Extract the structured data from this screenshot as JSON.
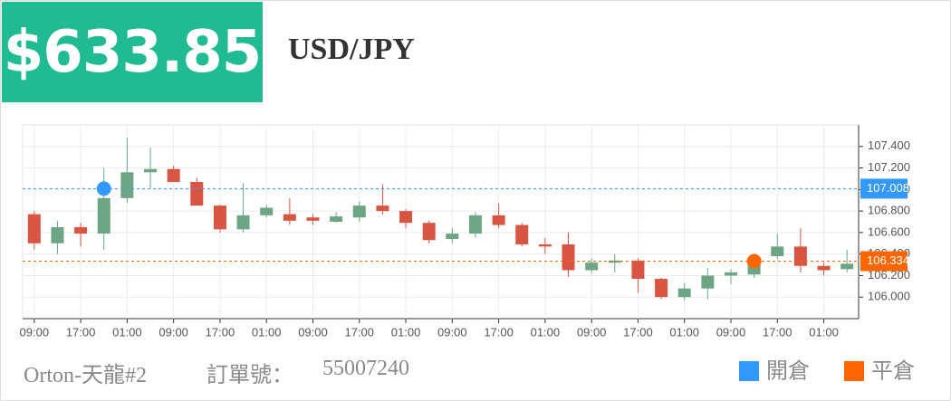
{
  "header": {
    "price": "$633.85",
    "pair": "USD/JPY"
  },
  "chart_data": {
    "type": "candlestick",
    "categories": [
      "09:00",
      null,
      "17:00",
      null,
      "01:00",
      null,
      "09:00",
      null,
      "17:00",
      null,
      "01:00",
      null,
      "09:00",
      null,
      "17:00",
      null,
      "01:00",
      null,
      "09:00",
      null,
      "17:00",
      null,
      "01:00",
      null,
      "09:00",
      null,
      "17:00",
      null,
      "01:00",
      null,
      "09:00",
      null,
      "17:00",
      null,
      "01:00",
      null
    ],
    "open": [
      106.77,
      106.5,
      106.65,
      106.59,
      106.92,
      107.16,
      107.19,
      107.07,
      106.85,
      106.63,
      106.76,
      106.77,
      106.74,
      106.7,
      106.74,
      106.85,
      106.8,
      106.69,
      106.54,
      106.59,
      106.76,
      106.67,
      106.49,
      106.49,
      106.25,
      106.32,
      106.34,
      106.17,
      106.0,
      106.08,
      106.2,
      106.21,
      106.38,
      106.47,
      106.29,
      106.26
    ],
    "high": [
      106.8,
      106.71,
      106.69,
      107.2,
      107.48,
      107.39,
      107.22,
      107.11,
      106.86,
      107.06,
      106.86,
      106.92,
      106.77,
      106.79,
      106.89,
      107.05,
      106.82,
      106.71,
      106.64,
      106.79,
      106.87,
      106.69,
      106.55,
      106.6,
      106.36,
      106.4,
      106.36,
      106.18,
      106.13,
      106.27,
      106.26,
      106.35,
      106.59,
      106.64,
      106.32,
      106.44
    ],
    "low": [
      106.44,
      106.4,
      106.47,
      106.44,
      106.88,
      107.01,
      107.07,
      106.85,
      106.6,
      106.6,
      106.74,
      106.67,
      106.67,
      106.69,
      106.7,
      106.77,
      106.64,
      106.5,
      106.5,
      106.55,
      106.64,
      106.47,
      106.4,
      106.19,
      106.22,
      106.23,
      106.04,
      105.98,
      105.97,
      105.98,
      106.12,
      106.18,
      106.35,
      106.23,
      106.2,
      106.23
    ],
    "close": [
      106.5,
      106.65,
      106.59,
      106.92,
      107.16,
      107.19,
      107.07,
      106.85,
      106.63,
      106.76,
      106.83,
      106.71,
      106.71,
      106.75,
      106.85,
      106.8,
      106.69,
      106.53,
      106.59,
      106.76,
      106.67,
      106.49,
      106.47,
      106.25,
      106.32,
      106.34,
      106.17,
      106.0,
      106.08,
      106.2,
      106.23,
      106.32,
      106.47,
      106.29,
      106.25,
      106.31
    ],
    "up_color": "#6da585",
    "down_color": "#d95543",
    "series": [
      {
        "name": "開倉",
        "color": "#3399ff",
        "values": [
          null,
          null,
          null,
          107.008,
          null,
          null,
          null,
          null,
          null,
          null,
          null,
          null,
          null,
          null,
          null,
          null,
          null,
          null,
          null,
          null,
          null,
          null,
          null,
          null,
          null,
          null,
          null,
          null,
          null,
          null,
          null,
          null,
          null,
          null,
          null,
          null
        ]
      },
      {
        "name": "平倉",
        "color": "#ff6600",
        "values": [
          null,
          null,
          null,
          null,
          null,
          null,
          null,
          null,
          null,
          null,
          null,
          null,
          null,
          null,
          null,
          null,
          null,
          null,
          null,
          null,
          null,
          null,
          null,
          null,
          null,
          null,
          null,
          null,
          null,
          null,
          null,
          106.334,
          null,
          null,
          null,
          null
        ]
      }
    ],
    "ylim": [
      105.8,
      107.6
    ],
    "yticks": [
      {
        "value": 106,
        "label": "106.000"
      },
      {
        "value": 106.2,
        "label": "106.200"
      },
      {
        "value": 106.4,
        "label": "106.400"
      },
      {
        "value": 106.6,
        "label": "106.600"
      },
      {
        "value": 106.8,
        "label": "106.800"
      },
      {
        "value": 107,
        "label": "107.000"
      },
      {
        "value": 107.2,
        "label": "107.200"
      },
      {
        "value": 107.4,
        "label": "107.400"
      }
    ],
    "grid": true
  },
  "footer": {
    "account": "Orton-天龍#2",
    "order_label": "訂單號：",
    "order_number": "55007240"
  }
}
